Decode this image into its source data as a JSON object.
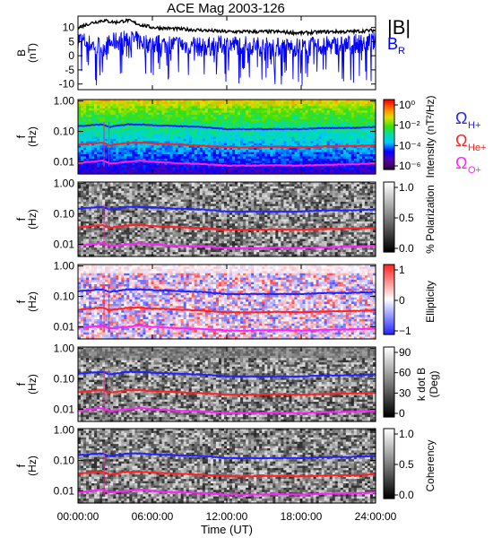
{
  "title": "ACE Mag 2003-126",
  "x_axis": {
    "label": "Time (UT)",
    "ticks": [
      "00:00:00",
      "06:00:00",
      "12:00:00",
      "18:00:00",
      "24:00:00"
    ],
    "range_hours": [
      0,
      24
    ]
  },
  "legend_top": {
    "b_total": "|B|",
    "b_r": "B",
    "b_r_sub": "R"
  },
  "legend_freq": [
    {
      "base": "Ω",
      "sub": "H+",
      "color": "#2222ff"
    },
    {
      "base": "Ω",
      "sub": "He+",
      "color": "#ff2222"
    },
    {
      "base": "Ω",
      "sub": "O+",
      "color": "#ff22ff"
    }
  ],
  "freq_axis": {
    "label_top": "f",
    "label_bottom": "(Hz)",
    "ticks": [
      "1.00",
      "0.10",
      "0.01"
    ]
  },
  "colors": {
    "b_total": "#000000",
    "b_r": "#0000ff",
    "h_plus": "#2222ff",
    "he_plus": "#ff2222",
    "o_plus": "#ff22ff"
  },
  "chart_data": [
    {
      "type": "line",
      "title": "ACE Mag 2003-126",
      "ylabel_top": "B",
      "ylabel_bottom": "(nT)",
      "ylim": [
        -12,
        14
      ],
      "yticks": [
        "10",
        "5",
        "0",
        "-5",
        "-10"
      ],
      "series": [
        {
          "name": "|B|",
          "x_hours": [
            0,
            1,
            2,
            3,
            4,
            5,
            6,
            8,
            10,
            12,
            14,
            16,
            18,
            20,
            22,
            24
          ],
          "values": [
            10,
            11.5,
            12.5,
            11.8,
            12.5,
            11,
            10,
            9.5,
            9,
            8.5,
            8.5,
            8.5,
            8,
            8.5,
            8.5,
            9
          ]
        },
        {
          "name": "BR",
          "x_hours": [
            0,
            1,
            2,
            3,
            4,
            5,
            6,
            8,
            10,
            12,
            14,
            16,
            18,
            20,
            22,
            24
          ],
          "values": [
            6,
            4,
            3,
            5,
            6,
            5,
            4,
            4,
            3,
            4,
            3.5,
            3,
            3,
            3.5,
            4,
            5
          ]
        }
      ]
    },
    {
      "type": "heatmap",
      "ylabel": "f (Hz)",
      "colorbar_label": "Intensity (nT²/Hz)",
      "colorbar_ticks": [
        "10⁰",
        "10⁻²",
        "10⁻⁴",
        "10⁻⁶"
      ],
      "colormap": "rainbow"
    },
    {
      "type": "heatmap",
      "ylabel": "f (Hz)",
      "colorbar_label": "% Polarization",
      "colorbar_ticks": [
        "1.0",
        "0.5",
        "0.0"
      ],
      "colormap": "gray"
    },
    {
      "type": "heatmap",
      "ylabel": "f (Hz)",
      "colorbar_label": "Ellipticity",
      "colorbar_ticks": [
        "1",
        "0",
        "−1"
      ],
      "colormap": "blue-white-red"
    },
    {
      "type": "heatmap",
      "ylabel": "f (Hz)",
      "colorbar_label_top": "k dot B",
      "colorbar_label_bottom": "(Deg)",
      "colorbar_ticks": [
        "90",
        "60",
        "30",
        "0"
      ],
      "colormap": "gray"
    },
    {
      "type": "heatmap",
      "ylabel": "f (Hz)",
      "colorbar_label": "Coherency",
      "colorbar_ticks": [
        "1.0",
        "0.5",
        "0.0"
      ],
      "colormap": "gray"
    }
  ],
  "gyrofrequency_lines_hz": {
    "x_hours": [
      0,
      1,
      2,
      2.5,
      3,
      4,
      5,
      6,
      8,
      10,
      12,
      14,
      16,
      18,
      20,
      22,
      24
    ],
    "h_plus": [
      0.15,
      0.16,
      0.17,
      0.14,
      0.15,
      0.17,
      0.17,
      0.16,
      0.15,
      0.14,
      0.12,
      0.12,
      0.12,
      0.12,
      0.13,
      0.13,
      0.14
    ],
    "he_plus": [
      0.036,
      0.04,
      0.043,
      0.035,
      0.037,
      0.042,
      0.043,
      0.04,
      0.037,
      0.034,
      0.03,
      0.03,
      0.031,
      0.03,
      0.032,
      0.033,
      0.035
    ],
    "o_plus": [
      0.009,
      0.01,
      0.011,
      0.009,
      0.009,
      0.01,
      0.011,
      0.01,
      0.009,
      0.0085,
      0.0075,
      0.0075,
      0.0078,
      0.0075,
      0.008,
      0.0083,
      0.0088
    ]
  }
}
